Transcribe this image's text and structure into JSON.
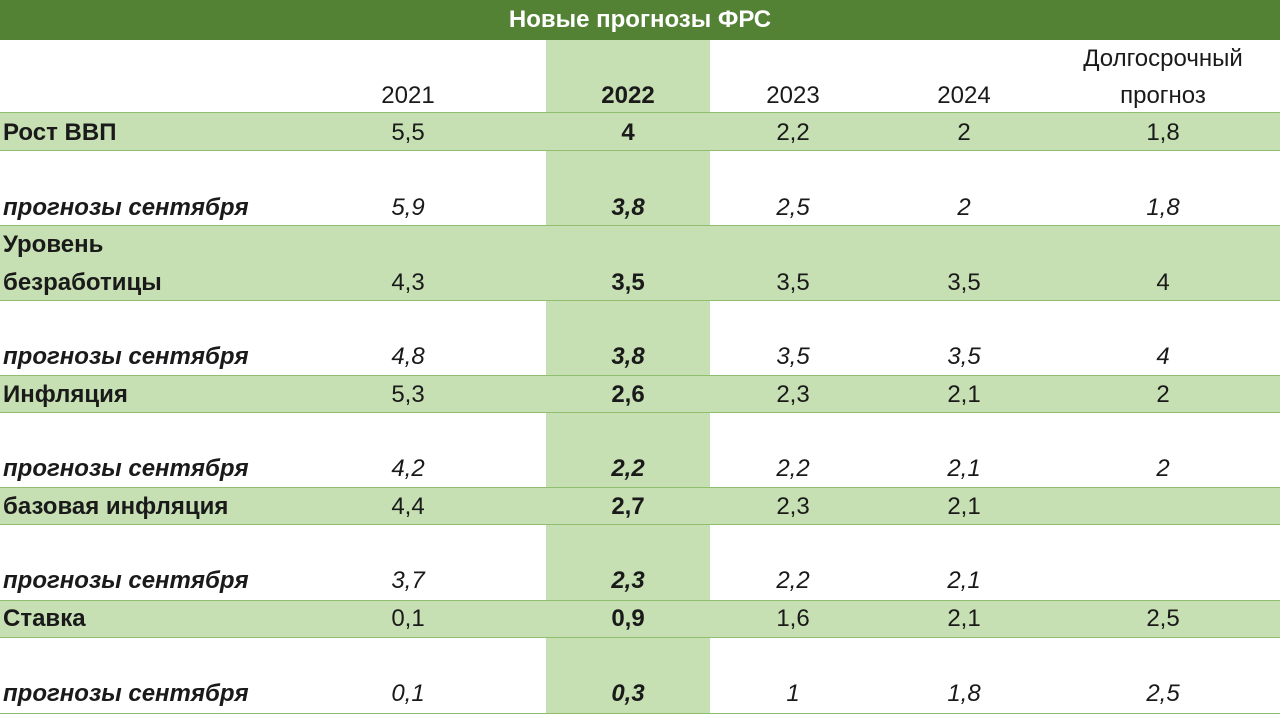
{
  "title": "Новые прогнозы ФРС",
  "columns": [
    "2021",
    "2022",
    "2023",
    "2024"
  ],
  "long_term_header": [
    "Долгосрочный",
    "прогноз"
  ],
  "rows": [
    {
      "label": "Рост ВВП",
      "values": [
        "5,5",
        "4",
        "2,2",
        "2",
        "1,8"
      ]
    },
    {
      "label": "прогнозы сентября",
      "values": [
        "5,9",
        "3,8",
        "2,5",
        "2",
        "1,8"
      ]
    },
    {
      "label_lines": [
        "Уровень",
        "безработицы"
      ],
      "values": [
        "4,3",
        "3,5",
        "3,5",
        "3,5",
        "4"
      ]
    },
    {
      "label": "прогнозы сентября",
      "values": [
        "4,8",
        "3,8",
        "3,5",
        "3,5",
        "4"
      ]
    },
    {
      "label": "Инфляция",
      "values": [
        "5,3",
        "2,6",
        "2,3",
        "2,1",
        "2"
      ]
    },
    {
      "label": "прогнозы сентября",
      "values": [
        "4,2",
        "2,2",
        "2,2",
        "2,1",
        "2"
      ]
    },
    {
      "label": "базовая инфляция",
      "values": [
        "4,4",
        "2,7",
        "2,3",
        "2,1",
        ""
      ]
    },
    {
      "label": "прогнозы сентября",
      "values": [
        "3,7",
        "2,3",
        "2,2",
        "2,1",
        ""
      ]
    },
    {
      "label": "Ставка",
      "values": [
        "0,1",
        "0,9",
        "1,6",
        "2,1",
        "2,5"
      ]
    },
    {
      "label": "прогнозы сентября",
      "values": [
        "0,1",
        "0,3",
        "1",
        "1,8",
        "2,5"
      ]
    }
  ]
}
